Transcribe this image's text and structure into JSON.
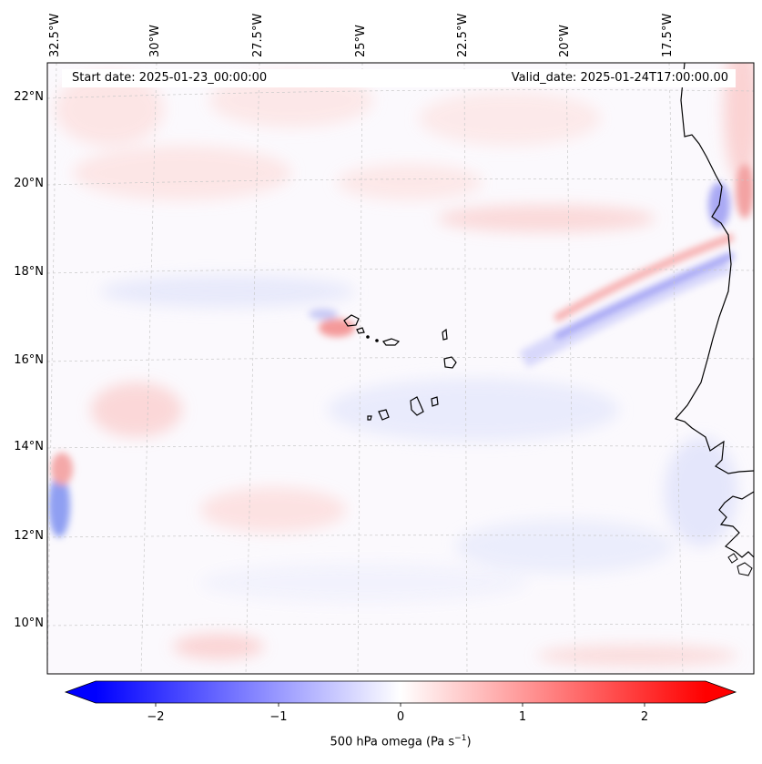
{
  "map": {
    "start_date_label": "Start date: 2025-01-23_00:00:00",
    "valid_date_label": "Valid_date: 2025-01-24T17:00:00.00",
    "lon_ticks": [
      "32.5°W",
      "30°W",
      "27.5°W",
      "25°W",
      "22.5°W",
      "20°W",
      "17.5°W"
    ],
    "lat_ticks": [
      "22°N",
      "20°N",
      "18°N",
      "16°N",
      "14°N",
      "12°N",
      "10°N"
    ],
    "field": "500 hPa omega",
    "colorbar": {
      "label_prefix": "500 hPa omega (Pa s",
      "label_exp": "−1",
      "label_suffix": ")",
      "ticks": [
        "−2",
        "−1",
        "0",
        "1",
        "2"
      ],
      "min": -2.6,
      "max": 2.6,
      "tick_values": [
        -2,
        -1,
        0,
        1,
        2
      ],
      "low_color": "#0000ff",
      "mid_color": "#ffffff",
      "high_color": "#ff0000"
    }
  }
}
